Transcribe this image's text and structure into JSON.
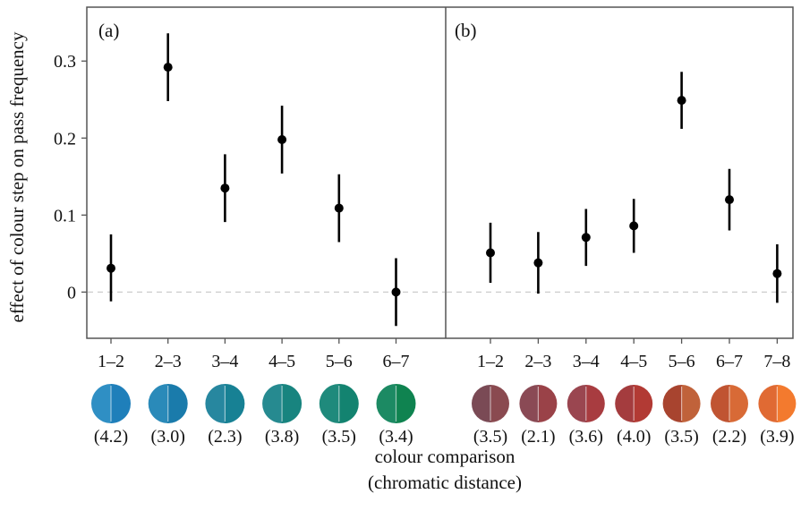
{
  "chart_data": [
    {
      "type": "scatter",
      "panel_label": "(a)",
      "categories": [
        "1–2",
        "2–3",
        "3–4",
        "4–5",
        "5–6",
        "6–7"
      ],
      "values": [
        0.031,
        0.292,
        0.135,
        0.198,
        0.109,
        0.0
      ],
      "ci_low": [
        -0.012,
        0.248,
        0.091,
        0.154,
        0.065,
        -0.044
      ],
      "ci_high": [
        0.075,
        0.336,
        0.179,
        0.242,
        0.153,
        0.044
      ],
      "distances": [
        "(4.2)",
        "(3.0)",
        "(2.3)",
        "(3.8)",
        "(3.5)",
        "(3.4)"
      ],
      "swatches": [
        [
          "#2f8fc4",
          "#1f7fba"
        ],
        [
          "#2a8ab9",
          "#1a7bab"
        ],
        [
          "#27879f",
          "#178194"
        ],
        [
          "#268a90",
          "#18847f"
        ],
        [
          "#1f8a7c",
          "#138370"
        ],
        [
          "#1c8a63",
          "#0f8350"
        ]
      ]
    },
    {
      "type": "scatter",
      "panel_label": "(b)",
      "categories": [
        "1–2",
        "2–3",
        "3–4",
        "4–5",
        "5–6",
        "6–7",
        "7–8"
      ],
      "values": [
        0.051,
        0.038,
        0.071,
        0.086,
        0.249,
        0.12,
        0.024
      ],
      "ci_low": [
        0.012,
        -0.002,
        0.034,
        0.051,
        0.212,
        0.08,
        -0.014
      ],
      "ci_high": [
        0.09,
        0.078,
        0.108,
        0.121,
        0.286,
        0.16,
        0.062
      ],
      "distances": [
        "(3.5)",
        "(2.1)",
        "(3.6)",
        "(4.0)",
        "(3.5)",
        "(2.2)",
        "(3.9)"
      ],
      "swatches": [
        [
          "#7a4a55",
          "#8a4a50"
        ],
        [
          "#8a4a55",
          "#9a4248"
        ],
        [
          "#9a4650",
          "#a83c40"
        ],
        [
          "#a43c3e",
          "#b23a34"
        ],
        [
          "#a8442f",
          "#c0623a"
        ],
        [
          "#c05432",
          "#d86a36"
        ],
        [
          "#e06a33",
          "#f37a2e"
        ]
      ]
    }
  ],
  "axes": {
    "ylabel": "effect of colour step on pass frequency",
    "xlabel_line1": "colour comparison",
    "xlabel_line2": "(chromatic distance)",
    "ylim": [
      -0.06,
      0.37
    ],
    "yticks": [
      0,
      0.1,
      0.2,
      0.3
    ],
    "ytick_labels": [
      "0",
      "0.1",
      "0.2",
      "0.3"
    ],
    "reference_line": 0,
    "colors": {
      "points": "#000000",
      "panel_border": "#555555",
      "reference_line": "#cccccc"
    }
  }
}
